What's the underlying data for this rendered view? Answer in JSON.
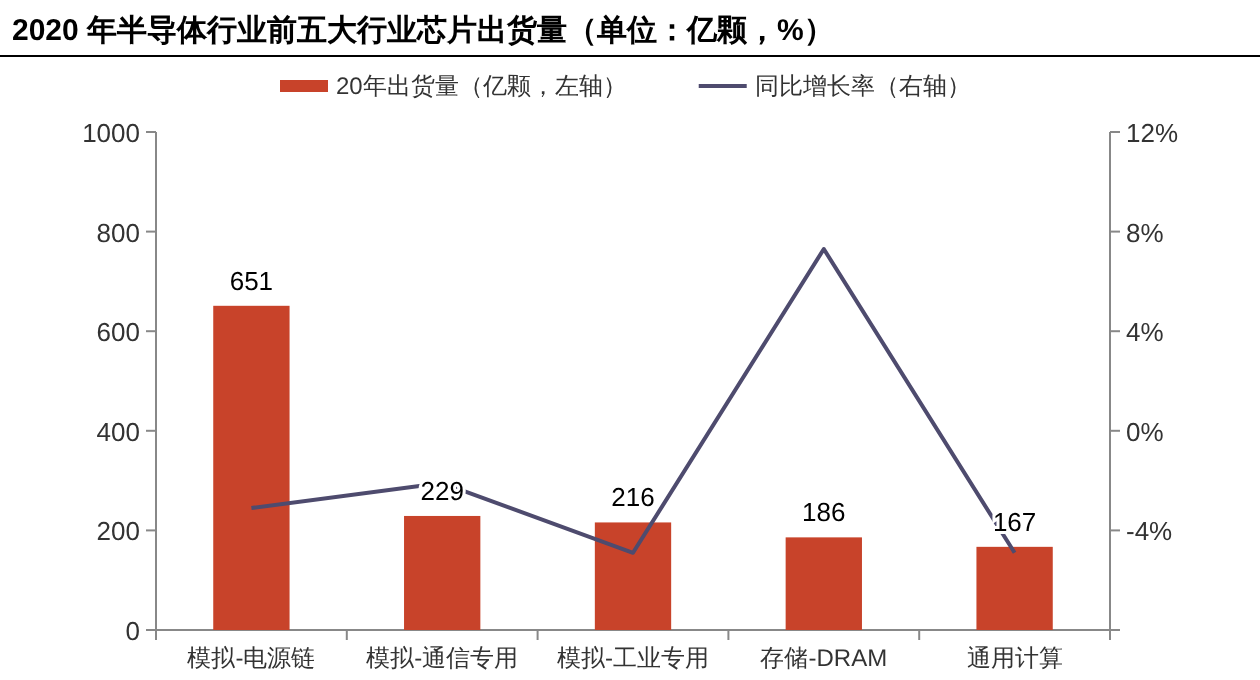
{
  "chart_data": {
    "type": "bar",
    "title": "2020 年半导体行业前五大行业芯片出货量（单位：亿颗，%）",
    "categories": [
      "模拟-电源链",
      "模拟-通信专用",
      "模拟-工业专用",
      "存储-DRAM",
      "通用计算"
    ],
    "series": [
      {
        "name": "20年出货量（亿颗，左轴）",
        "color": "#c8432a",
        "values": [
          651,
          229,
          216,
          186,
          167
        ],
        "value_labels": [
          "651",
          "229",
          "216",
          "186",
          "167"
        ]
      },
      {
        "name": "同比增长率（右轴）",
        "type": "line",
        "axis": "y2",
        "color": "#4e4b6e",
        "values": [
          -3.1,
          -2.1,
          -4.9,
          7.3,
          -4.9
        ]
      }
    ],
    "ylim": [
      0,
      1000
    ],
    "yticks": [
      0,
      200,
      400,
      600,
      800,
      1000
    ],
    "y2lim": [
      -8,
      12
    ],
    "y2ticks": [
      {
        "value": -8,
        "label": null
      },
      {
        "value": -4,
        "label": "-4%"
      },
      {
        "value": 0,
        "label": "0%"
      },
      {
        "value": 4,
        "label": "4%"
      },
      {
        "value": 8,
        "label": "8%"
      },
      {
        "value": 12,
        "label": "12%"
      }
    ],
    "legend": "top",
    "grid": false
  }
}
